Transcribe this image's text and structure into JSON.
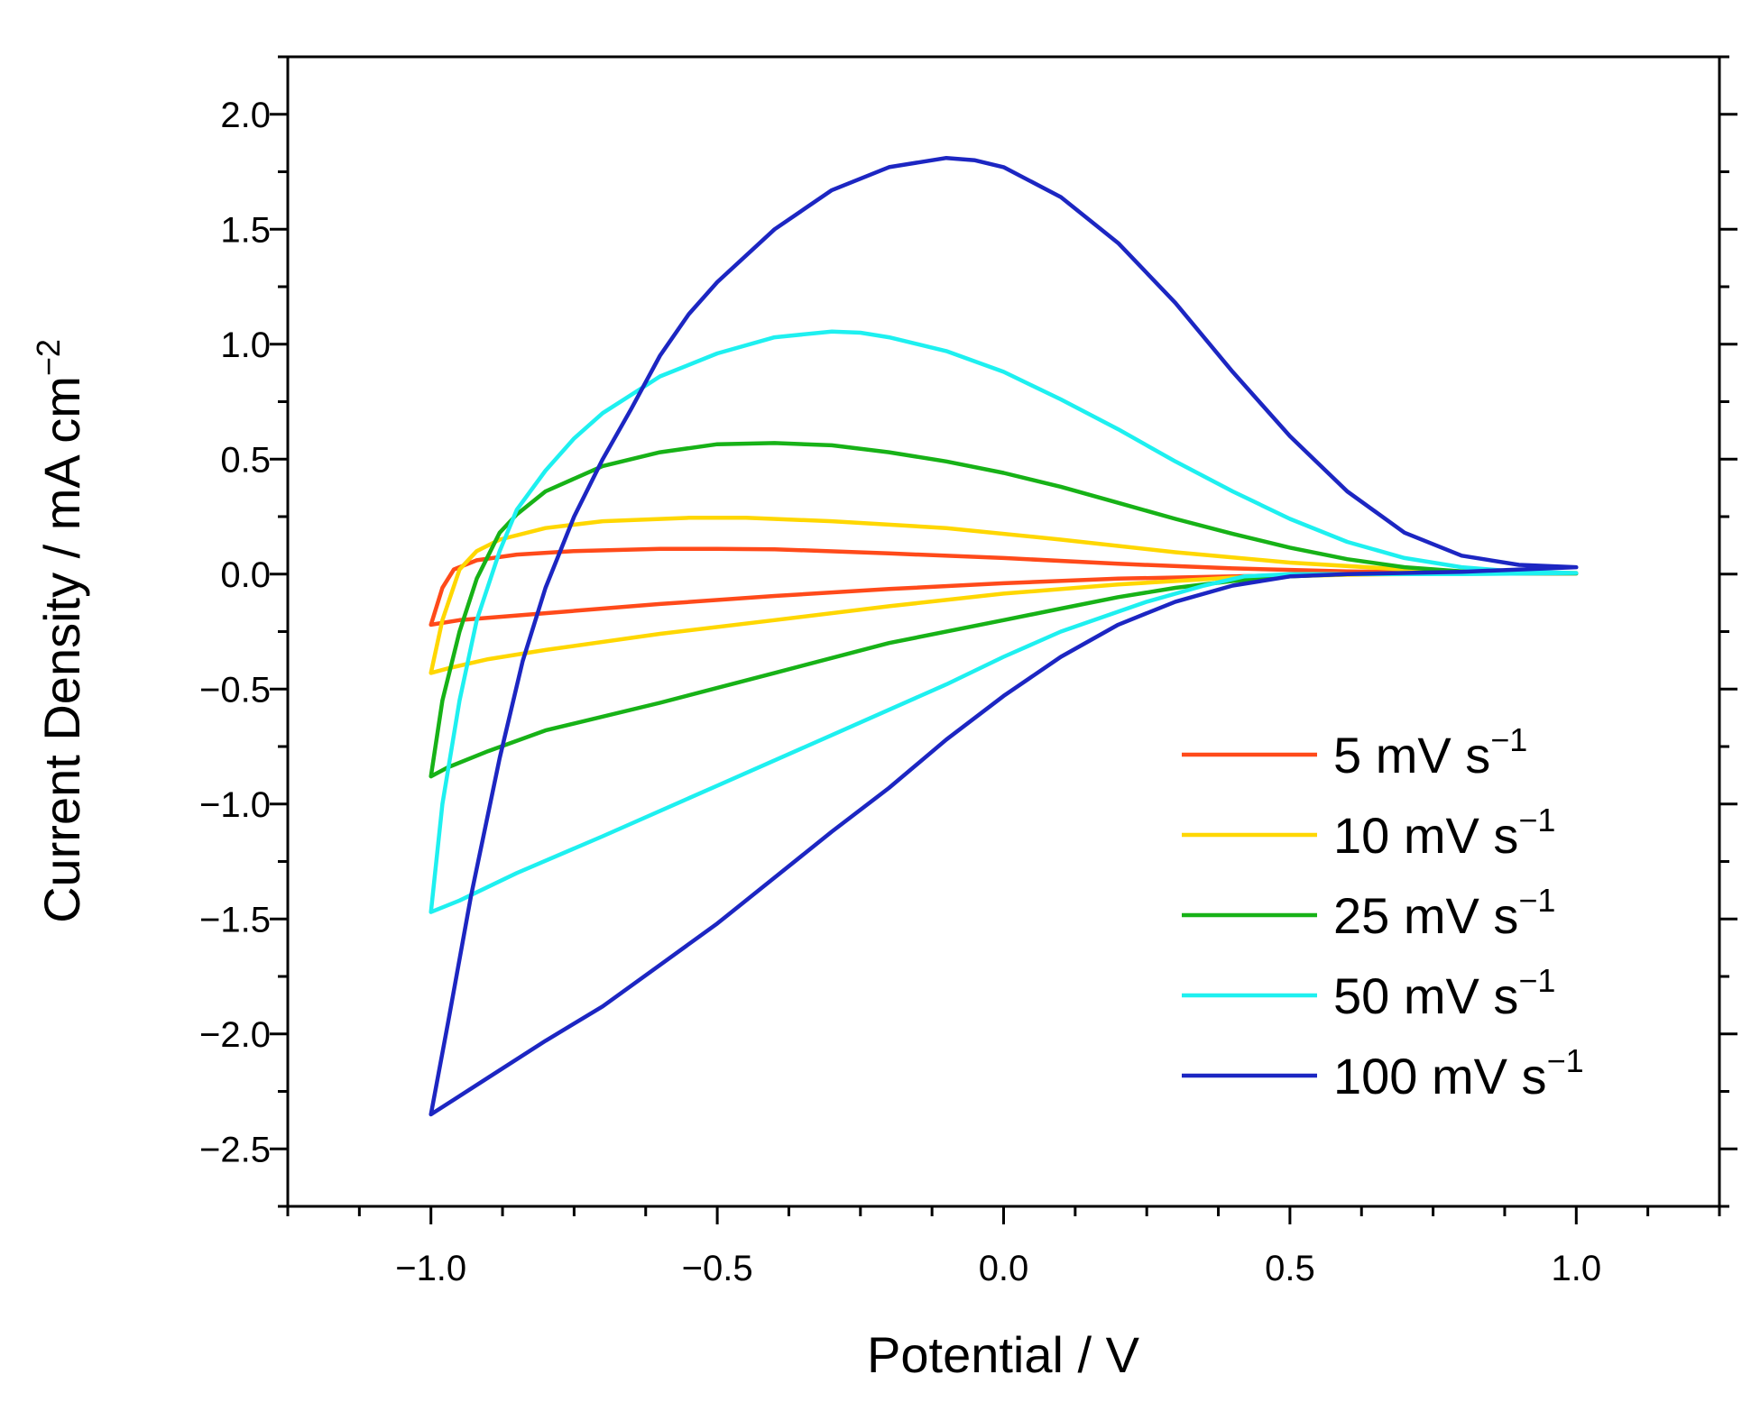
{
  "chart_data": {
    "type": "line",
    "title": "",
    "xlabel": "Potential / V",
    "ylabel": {
      "base": "Current Density / mA cm",
      "sup": "−2"
    },
    "xlim": [
      -1.25,
      1.25
    ],
    "ylim": [
      -2.75,
      2.25
    ],
    "xticks": [
      -1.0,
      -0.5,
      0.0,
      0.5,
      1.0
    ],
    "xtick_labels": [
      "−1.0",
      "−0.5",
      "0.0",
      "0.5",
      "1.0"
    ],
    "yticks": [
      2.0,
      1.5,
      1.0,
      0.5,
      0.0,
      -0.5,
      -1.0,
      -1.5,
      -2.0,
      -2.5
    ],
    "ytick_labels": [
      "2.0",
      "1.5",
      "1.0",
      "0.5",
      "0.0",
      "−0.5",
      "−1.0",
      "−1.5",
      "−2.0",
      "−2.5"
    ],
    "legend_position": "lower-right",
    "series": [
      {
        "name": "5 mV s",
        "sup": "−1",
        "color": "#ff4a1a",
        "anodic": [
          [
            -1.0,
            -0.22
          ],
          [
            -0.98,
            -0.06
          ],
          [
            -0.96,
            0.02
          ],
          [
            -0.92,
            0.06
          ],
          [
            -0.85,
            0.085
          ],
          [
            -0.75,
            0.1
          ],
          [
            -0.6,
            0.11
          ],
          [
            -0.5,
            0.11
          ],
          [
            -0.4,
            0.108
          ],
          [
            -0.2,
            0.09
          ],
          [
            0.0,
            0.07
          ],
          [
            0.2,
            0.045
          ],
          [
            0.4,
            0.025
          ],
          [
            0.6,
            0.012
          ],
          [
            0.8,
            0.006
          ],
          [
            1.0,
            0.003
          ]
        ],
        "cathodic": [
          [
            1.0,
            0.003
          ],
          [
            0.8,
            0.002
          ],
          [
            0.6,
            0.0
          ],
          [
            0.4,
            -0.01
          ],
          [
            0.2,
            -0.02
          ],
          [
            0.0,
            -0.04
          ],
          [
            -0.2,
            -0.065
          ],
          [
            -0.4,
            -0.095
          ],
          [
            -0.6,
            -0.13
          ],
          [
            -0.8,
            -0.17
          ],
          [
            -0.95,
            -0.2
          ],
          [
            -1.0,
            -0.22
          ]
        ]
      },
      {
        "name": "10 mV s",
        "sup": "−1",
        "color": "#ffd700",
        "anodic": [
          [
            -1.0,
            -0.43
          ],
          [
            -0.98,
            -0.2
          ],
          [
            -0.95,
            0.02
          ],
          [
            -0.92,
            0.1
          ],
          [
            -0.88,
            0.15
          ],
          [
            -0.8,
            0.2
          ],
          [
            -0.7,
            0.23
          ],
          [
            -0.55,
            0.245
          ],
          [
            -0.45,
            0.245
          ],
          [
            -0.3,
            0.23
          ],
          [
            -0.1,
            0.2
          ],
          [
            0.1,
            0.15
          ],
          [
            0.3,
            0.095
          ],
          [
            0.5,
            0.05
          ],
          [
            0.7,
            0.02
          ],
          [
            0.85,
            0.008
          ],
          [
            1.0,
            0.005
          ]
        ],
        "cathodic": [
          [
            1.0,
            0.005
          ],
          [
            0.8,
            0.002
          ],
          [
            0.6,
            -0.003
          ],
          [
            0.4,
            -0.015
          ],
          [
            0.2,
            -0.045
          ],
          [
            0.0,
            -0.085
          ],
          [
            -0.2,
            -0.14
          ],
          [
            -0.4,
            -0.2
          ],
          [
            -0.6,
            -0.26
          ],
          [
            -0.8,
            -0.33
          ],
          [
            -0.9,
            -0.37
          ],
          [
            -0.97,
            -0.41
          ],
          [
            -1.0,
            -0.43
          ]
        ]
      },
      {
        "name": "25 mV s",
        "sup": "−1",
        "color": "#17b217",
        "anodic": [
          [
            -1.0,
            -0.88
          ],
          [
            -0.98,
            -0.55
          ],
          [
            -0.95,
            -0.25
          ],
          [
            -0.92,
            -0.02
          ],
          [
            -0.88,
            0.18
          ],
          [
            -0.85,
            0.26
          ],
          [
            -0.8,
            0.36
          ],
          [
            -0.7,
            0.47
          ],
          [
            -0.6,
            0.53
          ],
          [
            -0.5,
            0.565
          ],
          [
            -0.4,
            0.57
          ],
          [
            -0.3,
            0.56
          ],
          [
            -0.2,
            0.53
          ],
          [
            -0.1,
            0.49
          ],
          [
            0.0,
            0.44
          ],
          [
            0.1,
            0.38
          ],
          [
            0.2,
            0.31
          ],
          [
            0.3,
            0.24
          ],
          [
            0.4,
            0.175
          ],
          [
            0.5,
            0.115
          ],
          [
            0.6,
            0.065
          ],
          [
            0.7,
            0.03
          ],
          [
            0.8,
            0.012
          ],
          [
            0.9,
            0.005
          ],
          [
            1.0,
            0.003
          ]
        ],
        "cathodic": [
          [
            1.0,
            0.003
          ],
          [
            0.8,
            0.003
          ],
          [
            0.6,
            0.0
          ],
          [
            0.5,
            -0.01
          ],
          [
            0.4,
            -0.03
          ],
          [
            0.3,
            -0.06
          ],
          [
            0.2,
            -0.1
          ],
          [
            0.1,
            -0.15
          ],
          [
            0.0,
            -0.2
          ],
          [
            -0.2,
            -0.3
          ],
          [
            -0.4,
            -0.43
          ],
          [
            -0.6,
            -0.56
          ],
          [
            -0.8,
            -0.68
          ],
          [
            -0.9,
            -0.77
          ],
          [
            -0.97,
            -0.84
          ],
          [
            -1.0,
            -0.88
          ]
        ]
      },
      {
        "name": "50 mV s",
        "sup": "−1",
        "color": "#1ef0f0",
        "anodic": [
          [
            -1.0,
            -1.47
          ],
          [
            -0.98,
            -1.0
          ],
          [
            -0.95,
            -0.55
          ],
          [
            -0.92,
            -0.2
          ],
          [
            -0.88,
            0.1
          ],
          [
            -0.85,
            0.28
          ],
          [
            -0.8,
            0.45
          ],
          [
            -0.75,
            0.59
          ],
          [
            -0.7,
            0.7
          ],
          [
            -0.6,
            0.86
          ],
          [
            -0.5,
            0.96
          ],
          [
            -0.4,
            1.03
          ],
          [
            -0.3,
            1.055
          ],
          [
            -0.25,
            1.05
          ],
          [
            -0.2,
            1.03
          ],
          [
            -0.1,
            0.97
          ],
          [
            0.0,
            0.88
          ],
          [
            0.1,
            0.76
          ],
          [
            0.2,
            0.63
          ],
          [
            0.3,
            0.49
          ],
          [
            0.4,
            0.36
          ],
          [
            0.5,
            0.24
          ],
          [
            0.6,
            0.14
          ],
          [
            0.7,
            0.07
          ],
          [
            0.8,
            0.03
          ],
          [
            0.9,
            0.01
          ],
          [
            1.0,
            0.005
          ]
        ],
        "cathodic": [
          [
            1.0,
            0.005
          ],
          [
            0.8,
            0.0
          ],
          [
            0.6,
            0.0
          ],
          [
            0.5,
            0.0
          ],
          [
            0.42,
            -0.01
          ],
          [
            0.35,
            -0.05
          ],
          [
            0.25,
            -0.12
          ],
          [
            0.1,
            -0.25
          ],
          [
            0.0,
            -0.36
          ],
          [
            -0.1,
            -0.48
          ],
          [
            -0.3,
            -0.7
          ],
          [
            -0.5,
            -0.92
          ],
          [
            -0.7,
            -1.14
          ],
          [
            -0.85,
            -1.3
          ],
          [
            -0.95,
            -1.42
          ],
          [
            -1.0,
            -1.47
          ]
        ]
      },
      {
        "name": "100 mV s",
        "sup": "−1",
        "color": "#1c26c2",
        "anodic": [
          [
            -1.0,
            -2.35
          ],
          [
            -0.97,
            -1.95
          ],
          [
            -0.93,
            -1.4
          ],
          [
            -0.88,
            -0.8
          ],
          [
            -0.84,
            -0.38
          ],
          [
            -0.8,
            -0.06
          ],
          [
            -0.75,
            0.25
          ],
          [
            -0.7,
            0.5
          ],
          [
            -0.65,
            0.72
          ],
          [
            -0.6,
            0.95
          ],
          [
            -0.55,
            1.13
          ],
          [
            -0.5,
            1.27
          ],
          [
            -0.4,
            1.5
          ],
          [
            -0.3,
            1.67
          ],
          [
            -0.2,
            1.77
          ],
          [
            -0.1,
            1.81
          ],
          [
            -0.05,
            1.8
          ],
          [
            0.0,
            1.77
          ],
          [
            0.1,
            1.64
          ],
          [
            0.2,
            1.44
          ],
          [
            0.3,
            1.18
          ],
          [
            0.4,
            0.88
          ],
          [
            0.5,
            0.6
          ],
          [
            0.6,
            0.36
          ],
          [
            0.7,
            0.18
          ],
          [
            0.8,
            0.08
          ],
          [
            0.9,
            0.04
          ],
          [
            1.0,
            0.03
          ]
        ],
        "cathodic": [
          [
            1.0,
            0.03
          ],
          [
            0.8,
            0.01
          ],
          [
            0.6,
            0.0
          ],
          [
            0.5,
            -0.01
          ],
          [
            0.4,
            -0.05
          ],
          [
            0.3,
            -0.12
          ],
          [
            0.2,
            -0.22
          ],
          [
            0.1,
            -0.36
          ],
          [
            0.0,
            -0.53
          ],
          [
            -0.1,
            -0.72
          ],
          [
            -0.2,
            -0.93
          ],
          [
            -0.3,
            -1.12
          ],
          [
            -0.4,
            -1.32
          ],
          [
            -0.5,
            -1.52
          ],
          [
            -0.6,
            -1.7
          ],
          [
            -0.7,
            -1.88
          ],
          [
            -0.8,
            -2.03
          ],
          [
            -0.9,
            -2.19
          ],
          [
            -1.0,
            -2.35
          ]
        ]
      }
    ]
  }
}
